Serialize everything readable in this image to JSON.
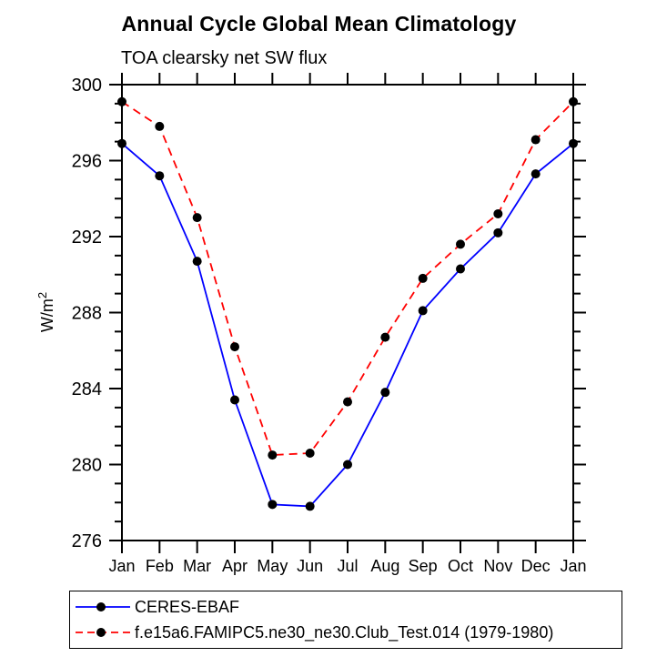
{
  "chart_data": {
    "type": "line",
    "title": "Annual Cycle Global Mean Climatology",
    "subtitle": "TOA clearsky net SW flux",
    "ylabel": {
      "text": "W/m",
      "superscript": "2"
    },
    "categories": [
      "Jan",
      "Feb",
      "Mar",
      "Apr",
      "May",
      "Jun",
      "Jul",
      "Aug",
      "Sep",
      "Oct",
      "Nov",
      "Dec",
      "Jan"
    ],
    "ylim": [
      276,
      300
    ],
    "ytick_major_step": 4,
    "ytick_minor_step": 1,
    "ytick_labels": [
      "276",
      "280",
      "284",
      "288",
      "292",
      "296",
      "300"
    ],
    "grid": false,
    "legend_position": "bottom",
    "axis_color": "#000000",
    "series": [
      {
        "name": "CERES-EBAF",
        "color": "#0000ff",
        "line_style": "solid",
        "marker": "circle",
        "marker_color": "#000000",
        "values": [
          296.9,
          295.2,
          290.7,
          283.4,
          277.9,
          277.8,
          280.0,
          283.8,
          288.1,
          290.3,
          292.2,
          295.3,
          296.9
        ]
      },
      {
        "name": "f.e15a6.FAMIPC5.ne30_ne30.Club_Test.014 (1979-1980)",
        "color": "#ff0000",
        "line_style": "dashed",
        "marker": "circle",
        "marker_color": "#000000",
        "values": [
          299.1,
          297.8,
          293.0,
          286.2,
          280.5,
          280.6,
          283.3,
          286.7,
          289.8,
          291.6,
          293.2,
          297.1,
          299.1
        ]
      }
    ]
  }
}
